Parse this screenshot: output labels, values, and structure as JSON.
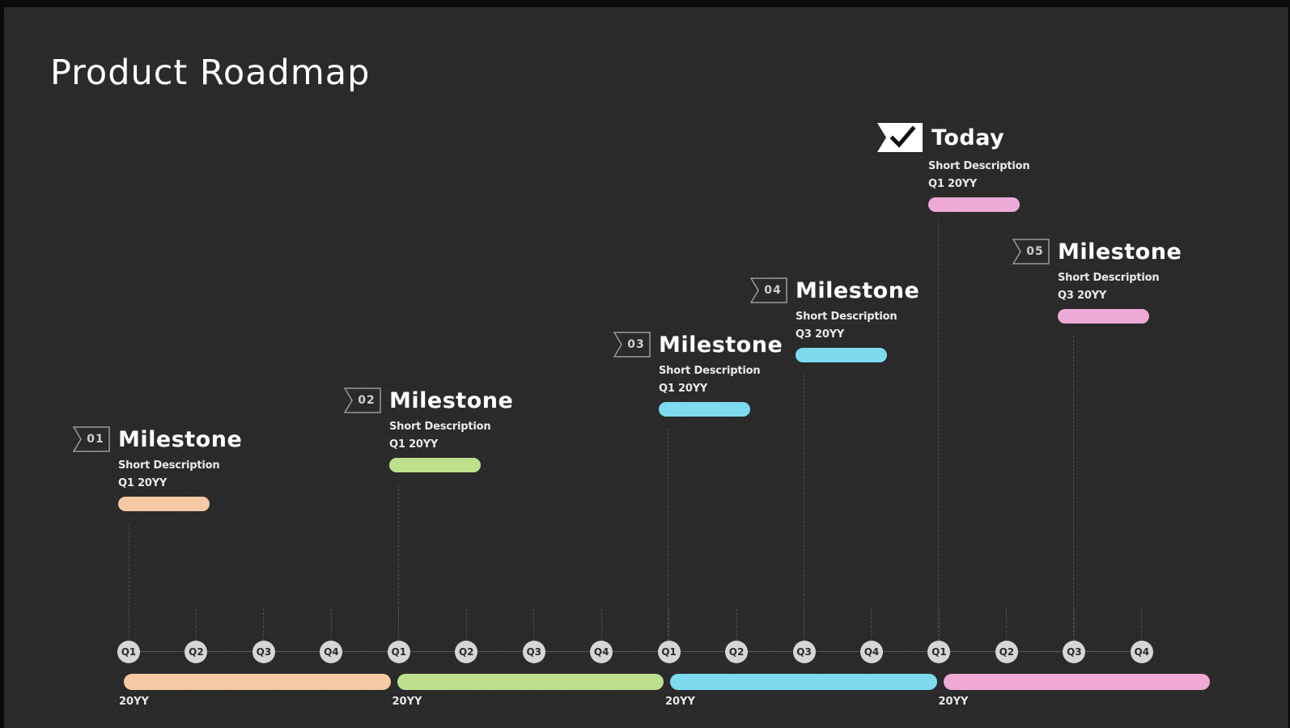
{
  "slide": {
    "title": "Product Roadmap"
  },
  "milestones": [
    {
      "num": "01",
      "title": "Milestone",
      "description": "Short Description",
      "date": "Q1 20YY",
      "color": "#f5c9a3"
    },
    {
      "num": "02",
      "title": "Milestone",
      "description": "Short Description",
      "date": "Q1 20YY",
      "color": "#bde08c"
    },
    {
      "num": "03",
      "title": "Milestone",
      "description": "Short Description",
      "date": "Q1 20YY",
      "color": "#7edaef"
    },
    {
      "num": "04",
      "title": "Milestone",
      "description": "Short Description",
      "date": "Q3 20YY",
      "color": "#7edaef"
    },
    {
      "num": "",
      "icon": "check-flag-icon",
      "title": "Today",
      "description": "Short Description",
      "date": "Q1 20YY",
      "color": "#eeaad6"
    },
    {
      "num": "05",
      "title": "Milestone",
      "description": "Short Description",
      "date": "Q3 20YY",
      "color": "#eeaad6"
    }
  ],
  "timeline": {
    "quarters": [
      "Q1",
      "Q2",
      "Q3",
      "Q4",
      "Q1",
      "Q2",
      "Q3",
      "Q4",
      "Q1",
      "Q2",
      "Q3",
      "Q4",
      "Q1",
      "Q2",
      "Q3",
      "Q4"
    ],
    "years": [
      {
        "label": "20YY",
        "color": "#f5c9a3"
      },
      {
        "label": "20YY",
        "color": "#bde08c"
      },
      {
        "label": "20YY",
        "color": "#7edaef"
      },
      {
        "label": "20YY",
        "color": "#f0a9d4"
      }
    ]
  }
}
